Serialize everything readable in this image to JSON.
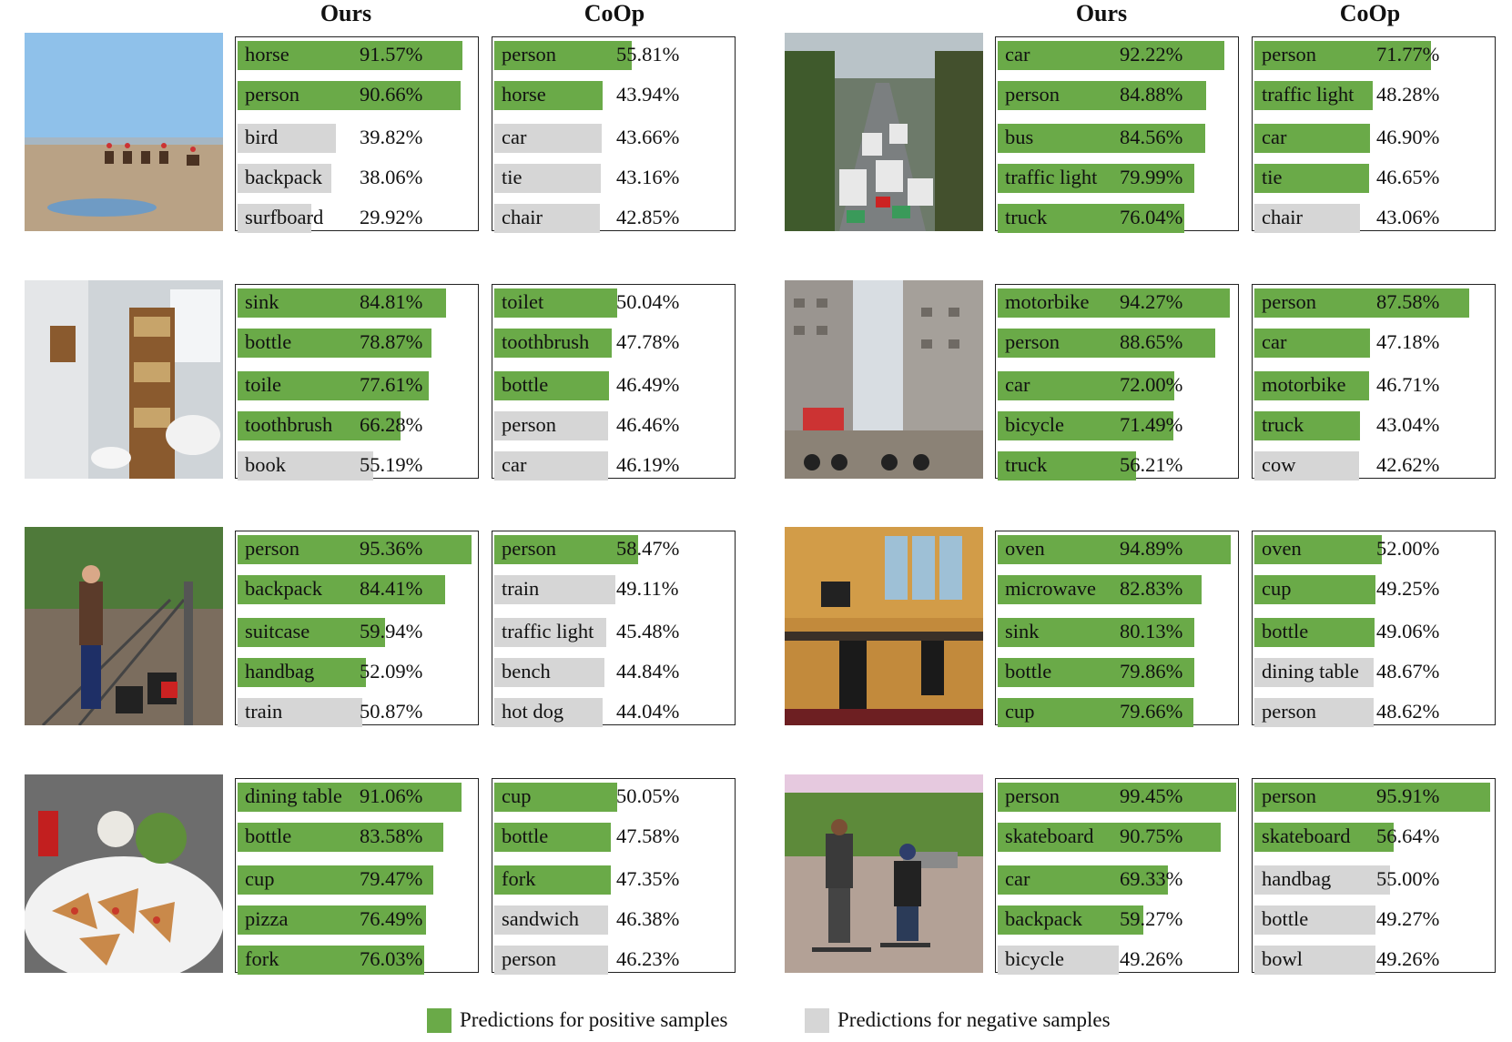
{
  "headers": {
    "ours": "Ours",
    "coop": "CoOp"
  },
  "legend": {
    "positive": "Predictions for positive samples",
    "negative": "Predictions for negative samples",
    "positive_color": "#6aaa48",
    "negative_color": "#d6d6d6"
  },
  "panels": [
    {
      "image": "beach-horse-riders-photo",
      "ours": [
        {
          "label": "horse",
          "value": "91.57%",
          "score": 91.57,
          "positive": true
        },
        {
          "label": "person",
          "value": "90.66%",
          "score": 90.66,
          "positive": true
        },
        {
          "label": "bird",
          "value": "39.82%",
          "score": 39.82,
          "positive": false
        },
        {
          "label": "backpack",
          "value": "38.06%",
          "score": 38.06,
          "positive": false
        },
        {
          "label": "surfboard",
          "value": "29.92%",
          "score": 29.92,
          "positive": false
        }
      ],
      "coop": [
        {
          "label": "person",
          "value": "55.81%",
          "score": 55.81,
          "positive": true
        },
        {
          "label": "horse",
          "value": "43.94%",
          "score": 43.94,
          "positive": true
        },
        {
          "label": "car",
          "value": "43.66%",
          "score": 43.66,
          "positive": false
        },
        {
          "label": "tie",
          "value": "43.16%",
          "score": 43.16,
          "positive": false
        },
        {
          "label": "chair",
          "value": "42.85%",
          "score": 42.85,
          "positive": false
        }
      ]
    },
    {
      "image": "city-traffic-jam-photo",
      "ours": [
        {
          "label": "car",
          "value": "92.22%",
          "score": 92.22,
          "positive": true
        },
        {
          "label": "person",
          "value": "84.88%",
          "score": 84.88,
          "positive": true
        },
        {
          "label": "bus",
          "value": "84.56%",
          "score": 84.56,
          "positive": true
        },
        {
          "label": "traffic light",
          "value": "79.99%",
          "score": 79.99,
          "positive": true
        },
        {
          "label": "truck",
          "value": "76.04%",
          "score": 76.04,
          "positive": true
        }
      ],
      "coop": [
        {
          "label": "person",
          "value": "71.77%",
          "score": 71.77,
          "positive": true
        },
        {
          "label": "traffic light",
          "value": "48.28%",
          "score": 48.28,
          "positive": true
        },
        {
          "label": "car",
          "value": "46.90%",
          "score": 46.9,
          "positive": true
        },
        {
          "label": "tie",
          "value": "46.65%",
          "score": 46.65,
          "positive": true
        },
        {
          "label": "chair",
          "value": "43.06%",
          "score": 43.06,
          "positive": false
        }
      ]
    },
    {
      "image": "bathroom-shelf-photo",
      "ours": [
        {
          "label": "sink",
          "value": "84.81%",
          "score": 84.81,
          "positive": true
        },
        {
          "label": "bottle",
          "value": "78.87%",
          "score": 78.87,
          "positive": true
        },
        {
          "label": "toile",
          "value": "77.61%",
          "score": 77.61,
          "positive": true
        },
        {
          "label": "toothbrush",
          "value": "66.28%",
          "score": 66.28,
          "positive": true
        },
        {
          "label": "book",
          "value": "55.19%",
          "score": 55.19,
          "positive": false
        }
      ],
      "coop": [
        {
          "label": "toilet",
          "value": "50.04%",
          "score": 50.04,
          "positive": true
        },
        {
          "label": "toothbrush",
          "value": "47.78%",
          "score": 47.78,
          "positive": true
        },
        {
          "label": "bottle",
          "value": "46.49%",
          "score": 46.49,
          "positive": true
        },
        {
          "label": "person",
          "value": "46.46%",
          "score": 46.46,
          "positive": false
        },
        {
          "label": "car",
          "value": "46.19%",
          "score": 46.19,
          "positive": false
        }
      ]
    },
    {
      "image": "street-motorbikes-photo",
      "ours": [
        {
          "label": "motorbike",
          "value": "94.27%",
          "score": 94.27,
          "positive": true
        },
        {
          "label": "person",
          "value": "88.65%",
          "score": 88.65,
          "positive": true
        },
        {
          "label": "car",
          "value": "72.00%",
          "score": 72.0,
          "positive": true
        },
        {
          "label": "bicycle",
          "value": "71.49%",
          "score": 71.49,
          "positive": true
        },
        {
          "label": "truck",
          "value": "56.21%",
          "score": 56.21,
          "positive": true
        }
      ],
      "coop": [
        {
          "label": "person",
          "value": "87.58%",
          "score": 87.58,
          "positive": true
        },
        {
          "label": "car",
          "value": "47.18%",
          "score": 47.18,
          "positive": true
        },
        {
          "label": "motorbike",
          "value": "46.71%",
          "score": 46.71,
          "positive": true
        },
        {
          "label": "truck",
          "value": "43.04%",
          "score": 43.04,
          "positive": true
        },
        {
          "label": "cow",
          "value": "42.62%",
          "score": 42.62,
          "positive": false
        }
      ]
    },
    {
      "image": "railway-platform-traveler-photo",
      "ours": [
        {
          "label": "person",
          "value": "95.36%",
          "score": 95.36,
          "positive": true
        },
        {
          "label": "backpack",
          "value": "84.41%",
          "score": 84.41,
          "positive": true
        },
        {
          "label": "suitcase",
          "value": "59.94%",
          "score": 59.94,
          "positive": true
        },
        {
          "label": "handbag",
          "value": "52.09%",
          "score": 52.09,
          "positive": true
        },
        {
          "label": "train",
          "value": "50.87%",
          "score": 50.87,
          "positive": false
        }
      ],
      "coop": [
        {
          "label": "person",
          "value": "58.47%",
          "score": 58.47,
          "positive": true
        },
        {
          "label": "train",
          "value": "49.11%",
          "score": 49.11,
          "positive": false
        },
        {
          "label": "traffic light",
          "value": "45.48%",
          "score": 45.48,
          "positive": false
        },
        {
          "label": "bench",
          "value": "44.84%",
          "score": 44.84,
          "positive": false
        },
        {
          "label": "hot dog",
          "value": "44.04%",
          "score": 44.04,
          "positive": false
        }
      ]
    },
    {
      "image": "kitchen-cabinets-photo",
      "ours": [
        {
          "label": "oven",
          "value": "94.89%",
          "score": 94.89,
          "positive": true
        },
        {
          "label": "microwave",
          "value": "82.83%",
          "score": 82.83,
          "positive": true
        },
        {
          "label": "sink",
          "value": "80.13%",
          "score": 80.13,
          "positive": true
        },
        {
          "label": "bottle",
          "value": "79.86%",
          "score": 79.86,
          "positive": true
        },
        {
          "label": "cup",
          "value": "79.66%",
          "score": 79.66,
          "positive": true
        }
      ],
      "coop": [
        {
          "label": "oven",
          "value": "52.00%",
          "score": 52.0,
          "positive": true
        },
        {
          "label": "cup",
          "value": "49.25%",
          "score": 49.25,
          "positive": true
        },
        {
          "label": "bottle",
          "value": "49.06%",
          "score": 49.06,
          "positive": true
        },
        {
          "label": "dining table",
          "value": "48.67%",
          "score": 48.67,
          "positive": false
        },
        {
          "label": "person",
          "value": "48.62%",
          "score": 48.62,
          "positive": false
        }
      ]
    },
    {
      "image": "dining-table-food-photo",
      "ours": [
        {
          "label": "dining table",
          "value": "91.06%",
          "score": 91.06,
          "positive": true
        },
        {
          "label": "bottle",
          "value": "83.58%",
          "score": 83.58,
          "positive": true
        },
        {
          "label": "cup",
          "value": "79.47%",
          "score": 79.47,
          "positive": true
        },
        {
          "label": "pizza",
          "value": "76.49%",
          "score": 76.49,
          "positive": true
        },
        {
          "label": "fork",
          "value": "76.03%",
          "score": 76.03,
          "positive": true
        }
      ],
      "coop": [
        {
          "label": "cup",
          "value": "50.05%",
          "score": 50.05,
          "positive": true
        },
        {
          "label": "bottle",
          "value": "47.58%",
          "score": 47.58,
          "positive": true
        },
        {
          "label": "fork",
          "value": "47.35%",
          "score": 47.35,
          "positive": true
        },
        {
          "label": "sandwich",
          "value": "46.38%",
          "score": 46.38,
          "positive": false
        },
        {
          "label": "person",
          "value": "46.23%",
          "score": 46.23,
          "positive": false
        }
      ]
    },
    {
      "image": "skateboarders-street-photo",
      "ours": [
        {
          "label": "person",
          "value": "99.45%",
          "score": 99.45,
          "positive": true
        },
        {
          "label": "skateboard",
          "value": "90.75%",
          "score": 90.75,
          "positive": true
        },
        {
          "label": "car",
          "value": "69.33%",
          "score": 69.33,
          "positive": true
        },
        {
          "label": "backpack",
          "value": "59.27%",
          "score": 59.27,
          "positive": true
        },
        {
          "label": "bicycle",
          "value": "49.26%",
          "score": 49.26,
          "positive": false
        }
      ],
      "coop": [
        {
          "label": "person",
          "value": "95.91%",
          "score": 95.91,
          "positive": true
        },
        {
          "label": "skateboard",
          "value": "56.64%",
          "score": 56.64,
          "positive": true
        },
        {
          "label": "handbag",
          "value": "55.00%",
          "score": 55.0,
          "positive": false
        },
        {
          "label": "bottle",
          "value": "49.27%",
          "score": 49.27,
          "positive": false
        },
        {
          "label": "bowl",
          "value": "49.26%",
          "score": 49.26,
          "positive": false
        }
      ]
    }
  ]
}
